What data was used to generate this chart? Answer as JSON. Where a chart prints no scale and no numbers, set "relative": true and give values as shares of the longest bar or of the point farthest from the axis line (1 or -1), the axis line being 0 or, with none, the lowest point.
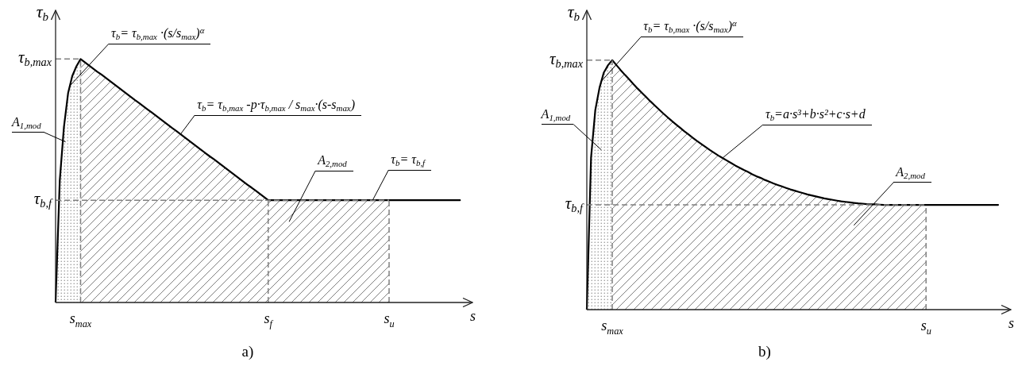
{
  "chart_data": [
    {
      "type": "line",
      "title": "a)",
      "xlabel": "s",
      "ylabel": "τ$_{b}$",
      "relative": true,
      "marker": "none",
      "categories": [
        null,
        null,
        null,
        null,
        null,
        null,
        "s$_{max}$",
        null,
        null,
        null,
        null,
        null,
        null,
        null,
        null,
        null,
        null,
        null,
        null,
        null,
        null,
        null,
        null,
        null,
        null,
        null,
        null,
        null,
        null,
        null,
        null,
        null,
        null,
        null,
        null,
        null,
        null,
        null,
        null,
        null,
        null,
        null,
        null,
        null,
        null,
        null,
        null,
        null,
        null,
        null,
        null,
        "s$_{f}$",
        null,
        null,
        null,
        null,
        null,
        null,
        null,
        null,
        null,
        null,
        null,
        null,
        null,
        null,
        null,
        null,
        null,
        null,
        null,
        null,
        null,
        null,
        null,
        null,
        null,
        null,
        null,
        null,
        "s$_{u}$",
        null,
        null,
        null,
        null,
        null,
        null,
        null,
        null,
        null,
        null,
        null,
        null,
        null,
        null,
        null,
        null,
        null,
        null,
        null,
        null
      ],
      "series": [
        {
          "type": "area",
          "name": "A$_{1,mod}$",
          "color": "#808080",
          "values": [
            0,
            0.5,
            0.72,
            0.86,
            0.93,
            0.97,
            1,
            null,
            null,
            null,
            null,
            null,
            null,
            null,
            null,
            null,
            null,
            null,
            null,
            null,
            null,
            null,
            null,
            null,
            null,
            null,
            null,
            null,
            null,
            null,
            null,
            null,
            null,
            null,
            null,
            null,
            null,
            null,
            null,
            null,
            null,
            null,
            null,
            null,
            null,
            null,
            null,
            null,
            null,
            null,
            null,
            null,
            null,
            null,
            null,
            null,
            null,
            null,
            null,
            null,
            null,
            null,
            null,
            null,
            null,
            null,
            null,
            null,
            null,
            null,
            null,
            null,
            null,
            null,
            null,
            null,
            null,
            null,
            null,
            null,
            null,
            null,
            null,
            null,
            null,
            null,
            null,
            null,
            null,
            null,
            null,
            null,
            null,
            null,
            null,
            null,
            null,
            null,
            null,
            null,
            null
          ]
        },
        {
          "type": "area",
          "name": "A$_{2,mod}$",
          "color": "#808080",
          "values": [
            null,
            null,
            null,
            null,
            null,
            null,
            1,
            0.987,
            0.974,
            0.961,
            0.948,
            0.936,
            0.923,
            0.91,
            0.897,
            0.884,
            0.871,
            0.858,
            0.845,
            0.832,
            0.82,
            0.807,
            0.794,
            0.781,
            0.768,
            0.755,
            0.742,
            0.729,
            0.716,
            0.704,
            0.691,
            0.678,
            0.665,
            0.652,
            0.639,
            0.626,
            0.613,
            0.6,
            0.588,
            0.575,
            0.562,
            0.549,
            0.536,
            0.523,
            0.51,
            0.497,
            0.484,
            0.472,
            0.459,
            0.446,
            0.433,
            0.42,
            0.42,
            0.42,
            0.42,
            0.42,
            0.42,
            0.42,
            0.42,
            0.42,
            0.42,
            0.42,
            0.42,
            0.42,
            0.42,
            0.42,
            0.42,
            0.42,
            0.42,
            0.42,
            0.42,
            0.42,
            0.42,
            0.42,
            0.42,
            0.42,
            0.42,
            0.42,
            0.42,
            0.42,
            0.42,
            null,
            null,
            null,
            null,
            null,
            null,
            null,
            null,
            null,
            null,
            null,
            null,
            null,
            null,
            null,
            null,
            null,
            null,
            null,
            null
          ]
        },
        {
          "color": "#000000",
          "values": [
            0,
            0.5,
            0.72,
            0.86,
            0.93,
            0.97,
            1,
            0.987,
            0.974,
            0.961,
            0.948,
            0.936,
            0.923,
            0.91,
            0.897,
            0.884,
            0.871,
            0.858,
            0.845,
            0.832,
            0.82,
            0.807,
            0.794,
            0.781,
            0.768,
            0.755,
            0.742,
            0.729,
            0.716,
            0.704,
            0.691,
            0.678,
            0.665,
            0.652,
            0.639,
            0.626,
            0.613,
            0.6,
            0.588,
            0.575,
            0.562,
            0.549,
            0.536,
            0.523,
            0.51,
            0.497,
            0.484,
            0.472,
            0.459,
            0.446,
            0.433,
            0.42,
            0.42,
            0.42,
            0.42,
            0.42,
            0.42,
            0.42,
            0.42,
            0.42,
            0.42,
            0.42,
            0.42,
            0.42,
            0.42,
            0.42,
            0.42,
            0.42,
            0.42,
            0.42,
            0.42,
            0.42,
            0.42,
            0.42,
            0.42,
            0.42,
            0.42,
            0.42,
            0.42,
            0.42,
            0.42,
            0.42,
            0.42,
            0.42,
            0.42,
            0.42,
            0.42,
            0.42,
            0.42,
            0.42,
            0.42,
            0.42,
            0.42,
            0.42,
            0.42,
            0.42,
            0.42,
            0.42,
            null,
            null,
            null
          ]
        }
      ],
      "ref_lines": [
        {
          "axis": "y",
          "value": 1,
          "label": "τ$_{b,max}$",
          "color": "#808080",
          "line_style": "dashed"
        },
        {
          "axis": "y",
          "value": 0.42,
          "label": "τ$_{b,f}$",
          "color": "#808080",
          "line_style": "dashed"
        },
        {
          "axis": "x",
          "value": "s$_{max}$",
          "color": "#808080",
          "line_style": "dashed"
        },
        {
          "axis": "x",
          "value": "s$_{f}$",
          "color": "#808080",
          "line_style": "dashed"
        },
        {
          "axis": "x",
          "value": "s$_{u}$",
          "color": "#808080",
          "line_style": "dashed"
        }
      ],
      "annotations": [
        "τ$_{b}$= τ$_{b,max}$ ·(s/s$_{max}$)$^{α}$",
        "τ$_{b}$= τ$_{b,max}$ -p·τ$_{b,max}$ / s$_{max}$·(s-s$_{max}$)",
        "τ$_{b}$= τ$_{b,f}$"
      ]
    },
    {
      "type": "line",
      "title": "b)",
      "xlabel": "s",
      "ylabel": "τ$_{b}$",
      "relative": true,
      "marker": "none",
      "categories": [
        null,
        null,
        null,
        null,
        null,
        null,
        "s$_{max}$",
        null,
        null,
        null,
        null,
        null,
        null,
        null,
        null,
        null,
        null,
        null,
        null,
        null,
        null,
        null,
        null,
        null,
        null,
        null,
        null,
        null,
        null,
        null,
        null,
        null,
        null,
        null,
        null,
        null,
        null,
        null,
        null,
        null,
        null,
        null,
        null,
        null,
        null,
        null,
        null,
        null,
        null,
        null,
        null,
        null,
        null,
        null,
        null,
        null,
        null,
        null,
        null,
        null,
        null,
        null,
        null,
        null,
        null,
        null,
        null,
        null,
        null,
        null,
        null,
        null,
        null,
        null,
        null,
        null,
        null,
        null,
        null,
        null,
        "s$_{u}$",
        null,
        null,
        null,
        null,
        null,
        null,
        null,
        null,
        null,
        null,
        null,
        null,
        null,
        null,
        null,
        null,
        null,
        null,
        null,
        null
      ],
      "series": [
        {
          "type": "area",
          "name": "A$_{1,mod}$",
          "color": "#808080",
          "values": [
            0,
            0.61,
            0.8,
            0.89,
            0.95,
            0.98,
            1,
            null,
            null,
            null,
            null,
            null,
            null,
            null,
            null,
            null,
            null,
            null,
            null,
            null,
            null,
            null,
            null,
            null,
            null,
            null,
            null,
            null,
            null,
            null,
            null,
            null,
            null,
            null,
            null,
            null,
            null,
            null,
            null,
            null,
            null,
            null,
            null,
            null,
            null,
            null,
            null,
            null,
            null,
            null,
            null,
            null,
            null,
            null,
            null,
            null,
            null,
            null,
            null,
            null,
            null,
            null,
            null,
            null,
            null,
            null,
            null,
            null,
            null,
            null,
            null,
            null,
            null,
            null,
            null,
            null,
            null,
            null,
            null,
            null,
            null,
            null,
            null,
            null,
            null,
            null,
            null,
            null,
            null,
            null,
            null,
            null,
            null,
            null,
            null,
            null,
            null,
            null,
            null,
            null,
            null
          ]
        },
        {
          "type": "area",
          "name": "A$_{2,mod}$",
          "color": "#808080",
          "values": [
            null,
            null,
            null,
            null,
            null,
            null,
            1,
            0.98,
            0.96,
            0.941,
            0.923,
            0.904,
            0.886,
            0.869,
            0.852,
            0.835,
            0.819,
            0.803,
            0.787,
            0.772,
            0.757,
            0.743,
            0.729,
            0.715,
            0.702,
            0.689,
            0.676,
            0.664,
            0.652,
            0.64,
            0.629,
            0.618,
            0.608,
            0.598,
            0.588,
            0.578,
            0.569,
            0.56,
            0.552,
            0.543,
            0.535,
            0.528,
            0.52,
            0.513,
            0.506,
            0.5,
            0.494,
            0.488,
            0.482,
            0.477,
            0.472,
            0.467,
            0.462,
            0.458,
            0.454,
            0.45,
            0.446,
            0.443,
            0.44,
            0.437,
            0.434,
            0.432,
            0.43,
            0.428,
            0.426,
            0.425,
            0.423,
            0.422,
            0.422,
            0.421,
            0.42,
            0.42,
            0.42,
            0.42,
            0.42,
            0.42,
            0.42,
            0.42,
            0.42,
            0.42,
            0.42,
            null,
            null,
            null,
            null,
            null,
            null,
            null,
            null,
            null,
            null,
            null,
            null,
            null,
            null,
            null,
            null,
            null,
            null,
            null,
            null
          ]
        },
        {
          "color": "#000000",
          "values": [
            0,
            0.61,
            0.8,
            0.89,
            0.95,
            0.98,
            1,
            0.98,
            0.96,
            0.941,
            0.923,
            0.904,
            0.886,
            0.869,
            0.852,
            0.835,
            0.819,
            0.803,
            0.787,
            0.772,
            0.757,
            0.743,
            0.729,
            0.715,
            0.702,
            0.689,
            0.676,
            0.664,
            0.652,
            0.64,
            0.629,
            0.618,
            0.608,
            0.598,
            0.588,
            0.578,
            0.569,
            0.56,
            0.552,
            0.543,
            0.535,
            0.528,
            0.52,
            0.513,
            0.506,
            0.5,
            0.494,
            0.488,
            0.482,
            0.477,
            0.472,
            0.467,
            0.462,
            0.458,
            0.454,
            0.45,
            0.446,
            0.443,
            0.44,
            0.437,
            0.434,
            0.432,
            0.43,
            0.428,
            0.426,
            0.425,
            0.423,
            0.422,
            0.422,
            0.421,
            0.42,
            0.42,
            0.42,
            0.42,
            0.42,
            0.42,
            0.42,
            0.42,
            0.42,
            0.42,
            0.42,
            0.42,
            0.42,
            0.42,
            0.42,
            0.42,
            0.42,
            0.42,
            0.42,
            0.42,
            0.42,
            0.42,
            0.42,
            0.42,
            0.42,
            0.42,
            0.42,
            0.42,
            null,
            null,
            null
          ]
        }
      ],
      "ref_lines": [
        {
          "axis": "y",
          "value": 1,
          "label": "τ$_{b,max}$",
          "color": "#808080",
          "line_style": "dashed"
        },
        {
          "axis": "y",
          "value": 0.42,
          "label": "τ$_{b,f}$",
          "color": "#808080",
          "line_style": "dashed"
        },
        {
          "axis": "x",
          "value": "s$_{max}$",
          "color": "#808080",
          "line_style": "dashed"
        },
        {
          "axis": "x",
          "value": "s$_{u}$",
          "color": "#808080",
          "line_style": "dashed"
        }
      ],
      "annotations": [
        "τ$_{b}$= τ$_{b,max}$ ·(s/s$_{max}$)$^{α}$",
        "τ$_{b}$=a·s³+b·s²+c·s+d"
      ]
    }
  ]
}
